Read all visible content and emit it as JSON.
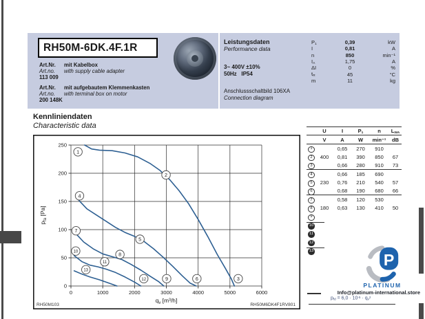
{
  "header": {
    "title": "RH50M-6DK.4F.1R",
    "art_items": [
      {
        "de_label": "Art.Nr.",
        "de_text": "mit Kabelbox",
        "en_label": "Art.no.",
        "en_text": "with supply cable adapter",
        "number": "113 009"
      },
      {
        "de_label": "Art.Nr.",
        "de_text": "mit aufgebautem Klemmenkasten",
        "en_label": "Art.no.",
        "en_text": "with terminal box on motor",
        "number": "200 148K"
      }
    ],
    "performance": {
      "title_de": "Leistungsdaten",
      "title_en": "Performance data",
      "voltage_line1": "3~ 400V ±10%",
      "voltage_line2": "50Hz   IP54",
      "connection_de": "Anschlussschaltbild 106XA",
      "connection_en": "Connection diagram",
      "params": [
        {
          "sym": "P",
          "sub": "1",
          "value": "0,39",
          "unit": "kW",
          "bold": true
        },
        {
          "sym": "I",
          "sub": "",
          "value": "0,81",
          "unit": "A",
          "bold": true
        },
        {
          "sym": "n",
          "sub": "",
          "value": "850",
          "unit": "min⁻¹",
          "bold": true
        },
        {
          "sym": "I",
          "sub": "A",
          "value": "1,75",
          "unit": "A",
          "bold": false
        },
        {
          "sym": "ΔI",
          "sub": "",
          "value": "0",
          "unit": "%",
          "bold": false
        },
        {
          "sym": "t",
          "sub": "R",
          "value": "45",
          "unit": "°C",
          "bold": false
        },
        {
          "sym": "m",
          "sub": "",
          "value": "11",
          "unit": "kg",
          "bold": false
        }
      ]
    }
  },
  "section": {
    "title_de": "Kennliniendaten",
    "title_en": "Characteristic data"
  },
  "chart_data": {
    "type": "line",
    "title": "",
    "xlabel_sym": "q",
    "xlabel_sub": "v",
    "xlabel_unit": " [m³/h]",
    "ylabel_sym": "p",
    "ylabel_sub": "fa",
    "ylabel_unit": " [Pa]",
    "xlim": [
      0,
      6000
    ],
    "ylim": [
      0,
      250
    ],
    "xticks": [
      0,
      1000,
      2000,
      3000,
      4000,
      5000,
      6000
    ],
    "yticks": [
      0,
      50,
      100,
      150,
      200,
      250
    ],
    "grid": true,
    "legend_position": "none",
    "code_left": "RH50M103",
    "code_right": "RH50M6DK4F1RV801",
    "series": [
      {
        "name": "curve-1-2-3",
        "points": [
          [
            430,
            250
          ],
          [
            650,
            243
          ],
          [
            900,
            241
          ],
          [
            1300,
            240
          ],
          [
            1700,
            236
          ],
          [
            2100,
            229
          ],
          [
            2500,
            217
          ],
          [
            2800,
            205
          ],
          [
            3100,
            189
          ],
          [
            3400,
            169
          ],
          [
            3700,
            146
          ],
          [
            4000,
            118
          ],
          [
            4300,
            88
          ],
          [
            4600,
            56
          ],
          [
            4850,
            32
          ],
          [
            5050,
            12
          ],
          [
            5140,
            0
          ]
        ]
      },
      {
        "name": "curve-4-5-6",
        "points": [
          [
            250,
            152
          ],
          [
            500,
            137
          ],
          [
            800,
            126
          ],
          [
            1100,
            115
          ],
          [
            1400,
            104
          ],
          [
            1700,
            95
          ],
          [
            2000,
            88
          ],
          [
            2300,
            79
          ],
          [
            2600,
            66
          ],
          [
            2900,
            51
          ],
          [
            3200,
            35
          ],
          [
            3500,
            18
          ],
          [
            3750,
            5
          ],
          [
            3940,
            0
          ]
        ]
      },
      {
        "name": "curve-7-8-9",
        "points": [
          [
            120,
            95
          ],
          [
            400,
            78
          ],
          [
            700,
            66
          ],
          [
            1000,
            57
          ],
          [
            1300,
            52
          ],
          [
            1600,
            47
          ],
          [
            1900,
            38
          ],
          [
            2200,
            28
          ],
          [
            2500,
            17
          ],
          [
            2750,
            8
          ],
          [
            2920,
            0
          ]
        ]
      },
      {
        "name": "curve-10-11-12",
        "points": [
          [
            100,
            54
          ],
          [
            350,
            43
          ],
          [
            600,
            37
          ],
          [
            850,
            34
          ],
          [
            1100,
            30
          ],
          [
            1400,
            24
          ],
          [
            1700,
            16
          ],
          [
            2000,
            7
          ],
          [
            2200,
            0
          ]
        ]
      },
      {
        "name": "curve-13",
        "points": [
          [
            100,
            27
          ],
          [
            350,
            21
          ],
          [
            600,
            16
          ],
          [
            900,
            11
          ],
          [
            1200,
            5
          ],
          [
            1450,
            0
          ]
        ]
      }
    ],
    "point_labels": [
      {
        "n": "1",
        "x": 220,
        "y": 238
      },
      {
        "n": "2",
        "x": 2990,
        "y": 197
      },
      {
        "n": "3",
        "x": 5260,
        "y": 13
      },
      {
        "n": "4",
        "x": 270,
        "y": 160
      },
      {
        "n": "5",
        "x": 2170,
        "y": 83
      },
      {
        "n": "6",
        "x": 3960,
        "y": 13
      },
      {
        "n": "7",
        "x": 160,
        "y": 98
      },
      {
        "n": "8",
        "x": 1540,
        "y": 56
      },
      {
        "n": "9",
        "x": 3010,
        "y": 13
      },
      {
        "n": "10",
        "x": 150,
        "y": 62
      },
      {
        "n": "11",
        "x": 1060,
        "y": 43
      },
      {
        "n": "12",
        "x": 2290,
        "y": 13
      },
      {
        "n": "13",
        "x": 470,
        "y": 29
      }
    ],
    "curve_color": "#2d5f92"
  },
  "table": {
    "headers": [
      {
        "t": "U",
        "s": ""
      },
      {
        "t": "I",
        "s": ""
      },
      {
        "t": "P",
        "s": "1"
      },
      {
        "t": "n",
        "s": ""
      },
      {
        "t": "L",
        "s": "WA"
      }
    ],
    "units": [
      "V",
      "A",
      "W",
      "min⁻¹",
      "dB"
    ],
    "rows": [
      {
        "num": "1",
        "filled": false,
        "U": "",
        "I": "0,65",
        "P1": "270",
        "n": "910",
        "LWA": ""
      },
      {
        "num": "2",
        "filled": false,
        "U": "400",
        "I": "0,81",
        "P1": "390",
        "n": "850",
        "LWA": "67"
      },
      {
        "num": "3",
        "filled": false,
        "U": "",
        "I": "0,66",
        "P1": "280",
        "n": "910",
        "LWA": "73"
      },
      {
        "num": "4",
        "filled": false,
        "U": "",
        "I": "0,66",
        "P1": "185",
        "n": "690",
        "LWA": ""
      },
      {
        "num": "5",
        "filled": false,
        "U": "230",
        "I": "0,76",
        "P1": "210",
        "n": "540",
        "LWA": "57"
      },
      {
        "num": "6",
        "filled": false,
        "U": "",
        "I": "0,68",
        "P1": "190",
        "n": "680",
        "LWA": "66"
      },
      {
        "num": "7",
        "filled": false,
        "U": "",
        "I": "0,58",
        "P1": "120",
        "n": "530",
        "LWA": ""
      },
      {
        "num": "8",
        "filled": false,
        "U": "180",
        "I": "0,63",
        "P1": "130",
        "n": "410",
        "LWA": "50"
      },
      {
        "num": "9",
        "filled": false,
        "U": "",
        "I": "",
        "P1": "",
        "n": "",
        "LWA": ""
      },
      {
        "num": "10",
        "filled": true,
        "U": "",
        "I": "",
        "P1": "",
        "n": "",
        "LWA": ""
      },
      {
        "num": "11",
        "filled": true,
        "U": "",
        "I": "",
        "P1": "",
        "n": "",
        "LWA": ""
      },
      {
        "num": "12",
        "filled": true,
        "U": "",
        "I": "",
        "P1": "",
        "n": "",
        "LWA": ""
      },
      {
        "num": "13",
        "filled": true,
        "U": "",
        "I": "",
        "P1": "",
        "n": "",
        "LWA": ""
      }
    ],
    "group_lines_after": [
      3,
      6,
      9,
      12
    ]
  },
  "formula": {
    "sym1": "p",
    "sub1": "fd",
    "mid": " = 6,0 · 10",
    "sup1": "-5",
    "mid2": " · ",
    "sym2": "q",
    "sub2": "v",
    "sup2": "2"
  },
  "watermark": {
    "brand": "PLATINUM",
    "email": "Info@platinum-international.store"
  }
}
